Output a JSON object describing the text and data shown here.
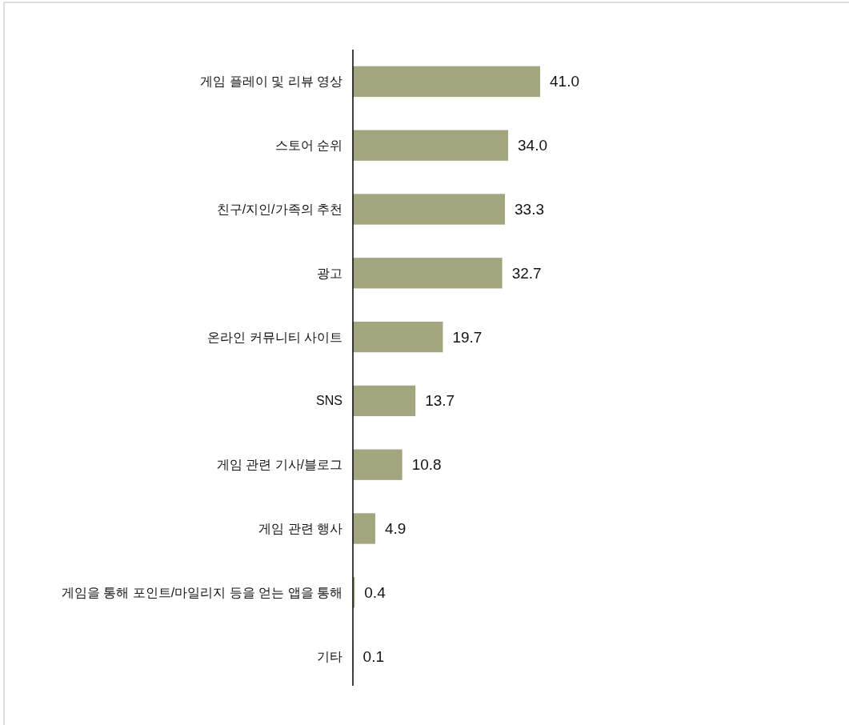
{
  "chart_data": {
    "type": "bar",
    "orientation": "horizontal",
    "categories": [
      "게임 플레이 및 리뷰 영상",
      "스토어 순위",
      "친구/지인/가족의 추천",
      "광고",
      "온라인 커뮤니티 사이트",
      "SNS",
      "게임 관련 기사/블로그",
      "게임 관련 행사",
      "게임을 통해 포인트/마일리지 등을 얻는 앱을 통해",
      "기타"
    ],
    "values": [
      41.0,
      34.0,
      33.3,
      32.7,
      19.7,
      13.7,
      10.8,
      4.9,
      0.4,
      0.1
    ],
    "value_labels": [
      "41.0",
      "34.0",
      "33.3",
      "32.7",
      "19.7",
      "13.7",
      "10.8",
      "4.9",
      "0.4",
      "0.1"
    ],
    "color": "#a2a67e"
  }
}
